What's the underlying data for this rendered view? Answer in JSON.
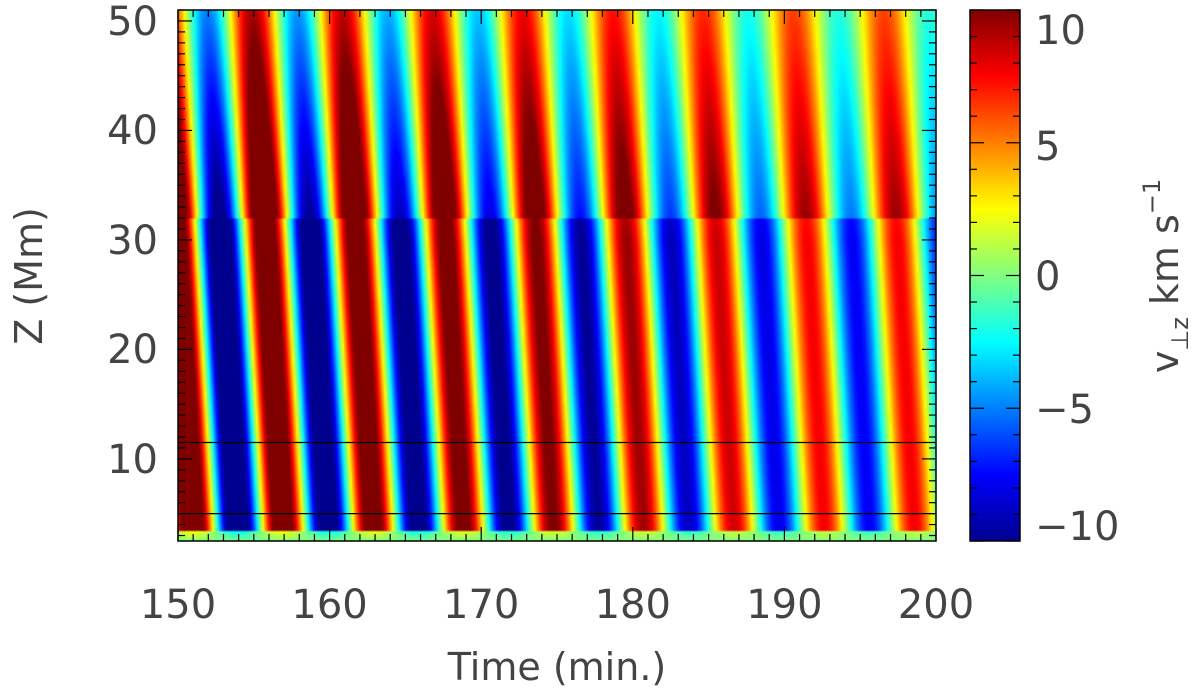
{
  "chart_data": {
    "type": "heatmap",
    "xlabel": "Time (min.)",
    "ylabel": "Z (Mm)",
    "xlim": [
      150,
      200
    ],
    "ylim": [
      2.5,
      51
    ],
    "x_ticks": [
      "150",
      "160",
      "170",
      "180",
      "190",
      "200"
    ],
    "y_ticks": [
      "10",
      "20",
      "30",
      "40",
      "50"
    ],
    "colormap": "jet",
    "colorbar": {
      "label_main": "v",
      "label_sub": "⊥z",
      "label_units": "km s",
      "label_exp": "−1",
      "range": [
        -10,
        10
      ],
      "ticks": [
        "10",
        "5",
        "0",
        "−5",
        "−10"
      ]
    },
    "horizontal_lines_z": [
      11.5,
      5.0
    ],
    "oscillation": {
      "first_peak_time": 150.8,
      "period_min": 5.95,
      "max_amplitude": 10,
      "core_height_range": [
        4,
        14
      ],
      "saturated_height_range": [
        6,
        30
      ]
    }
  }
}
